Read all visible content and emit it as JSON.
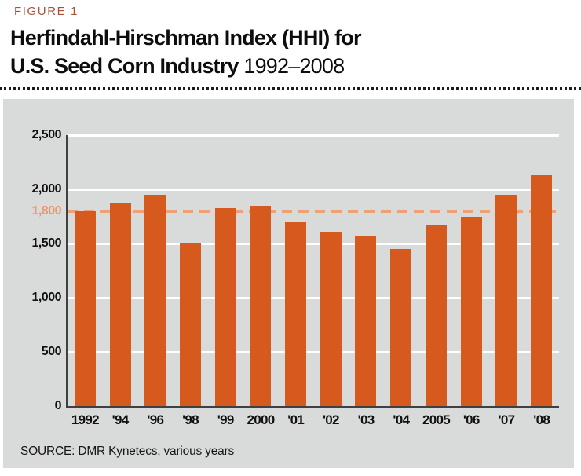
{
  "header": {
    "figure_label": "FIGURE 1",
    "title_line1": "Herfindahl-Hirschman Index (HHI) for",
    "title_line2_bold": "U.S. Seed Corn Industry",
    "title_years": " 1992–2008"
  },
  "chart_data": {
    "type": "bar",
    "title": "Herfindahl-Hirschman Index (HHI) for U.S. Seed Corn Industry 1992–2008",
    "categories": [
      "1992",
      "'94",
      "'96",
      "'98",
      "'99",
      "2000",
      "'01",
      "'02",
      "'03",
      "'04",
      "2005",
      "'06",
      "'07",
      "'08"
    ],
    "values": [
      1800,
      1870,
      1950,
      1500,
      1825,
      1850,
      1700,
      1610,
      1570,
      1450,
      1675,
      1750,
      1950,
      2130
    ],
    "xlabel": "",
    "ylabel": "",
    "ylim": [
      0,
      2500
    ],
    "yticks": [
      {
        "value": 0,
        "label": "0"
      },
      {
        "value": 500,
        "label": "500"
      },
      {
        "value": 1000,
        "label": "1,000"
      },
      {
        "value": 1500,
        "label": "1,500"
      },
      {
        "value": 2000,
        "label": "2,000"
      },
      {
        "value": 2500,
        "label": "2,500"
      }
    ],
    "reference_line": {
      "value": 1800,
      "label": "1,800"
    },
    "grid": true,
    "legend": false,
    "bar_color": "#d6591e",
    "reference_color": "#f0a077",
    "panel_background": "#d9dbda",
    "axis_color": "#3d4141",
    "gridline_color": "#ffffff"
  },
  "footer": {
    "source": "SOURCE: DMR Kynetecs, various years"
  },
  "colors": {
    "figure_label": "#ab5035",
    "title_text": "#0d0d0d",
    "bar": "#d6591e",
    "reference_dash": "#f0a077",
    "panel_background": "#d9dbda"
  }
}
